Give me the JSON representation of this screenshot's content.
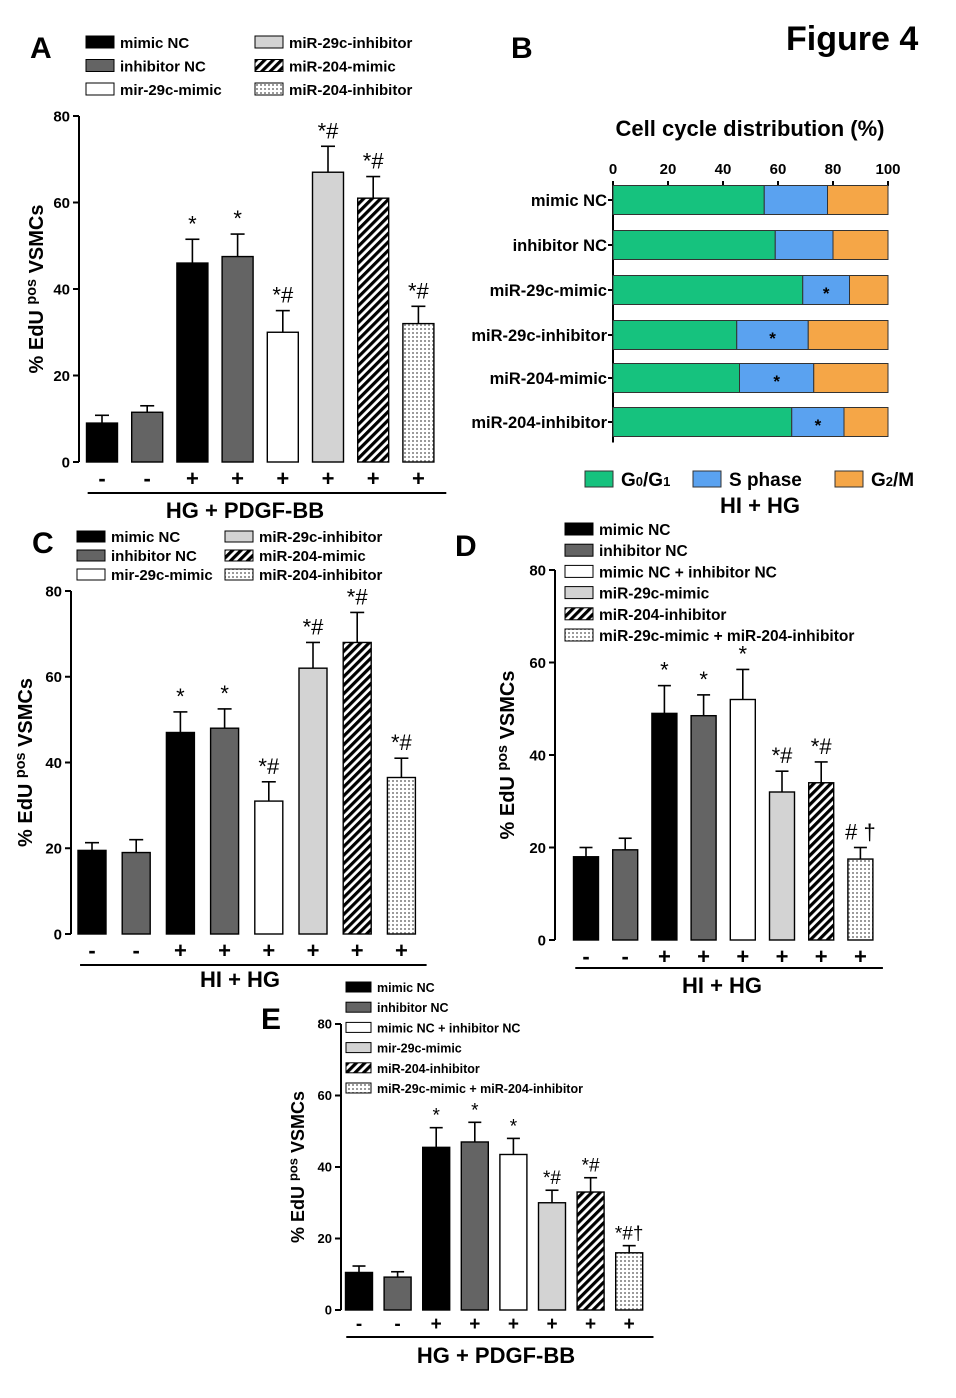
{
  "figure_title": "Figure 4",
  "colors": {
    "mimic_nc": "#000000",
    "inhibitor_nc": "#646464",
    "white": "#ffffff",
    "light_gray": "#d3d3d3",
    "g0g1": "#16c27e",
    "s_phase": "#5aa2f0",
    "g2m": "#f5a647"
  },
  "chart_data": [
    {
      "panel": "A",
      "type": "bar",
      "ylabel": "% EdU pos VSMCs",
      "ylabel_parts": [
        "% EdU",
        "pos",
        "VSMCs"
      ],
      "ylim": [
        0,
        80
      ],
      "yticks": [
        0,
        20,
        40,
        60,
        80
      ],
      "legend": [
        {
          "label": "mimic NC",
          "style": "black"
        },
        {
          "label": "inhibitor NC",
          "style": "darkgray"
        },
        {
          "label": "mir-29c-mimic",
          "style": "white"
        },
        {
          "label": "miR-29c-inhibitor",
          "style": "lightgray"
        },
        {
          "label": "miR-204-mimic",
          "style": "hatch"
        },
        {
          "label": "miR-204-inhibitor",
          "style": "dots"
        }
      ],
      "categories": [
        "-",
        "-",
        "+",
        "+",
        "+",
        "+",
        "+",
        "+"
      ],
      "treatment_label": "HG + PDGF-BB",
      "values": [
        9,
        11.5,
        46,
        47.5,
        30,
        67,
        61,
        32
      ],
      "errors": [
        1.8,
        1.5,
        5.5,
        5.2,
        5,
        6,
        5,
        4
      ],
      "styles": [
        "black",
        "darkgray",
        "black",
        "darkgray",
        "white",
        "lightgray",
        "hatch",
        "dots"
      ],
      "annotations": [
        "",
        "",
        "*",
        "*",
        "*#",
        "*#",
        "*#",
        "*#"
      ]
    },
    {
      "panel": "B",
      "type": "bar",
      "orientation": "horizontal-stacked",
      "title": "Cell cycle distribution (%)",
      "xlim": [
        0,
        100
      ],
      "xticks": [
        0,
        20,
        40,
        60,
        80,
        100
      ],
      "categories": [
        "mimic NC",
        "inhibitor NC",
        "miR-29c-mimic",
        "miR-29c-inhibitor",
        "miR-204-mimic",
        "miR-204-inhibitor"
      ],
      "series": [
        {
          "name": "G0/G1",
          "values": [
            55,
            59,
            69,
            45,
            46,
            65
          ]
        },
        {
          "name": "S phase",
          "values": [
            23,
            21,
            17,
            26,
            27,
            19
          ]
        },
        {
          "name": "G2/M",
          "values": [
            22,
            20,
            14,
            29,
            27,
            16
          ]
        }
      ],
      "s_phase_annotations": [
        "",
        "",
        "*",
        "*",
        "*",
        "*"
      ],
      "legend_labels": [
        "G0/G1",
        "S phase",
        "G2/M"
      ],
      "treatment_label": "HI + HG"
    },
    {
      "panel": "C",
      "type": "bar",
      "ylabel": "% EdU pos VSMCs",
      "ylim": [
        0,
        80
      ],
      "yticks": [
        0,
        20,
        40,
        60,
        80
      ],
      "legend": [
        {
          "label": "mimic NC",
          "style": "black"
        },
        {
          "label": "inhibitor NC",
          "style": "darkgray"
        },
        {
          "label": "mir-29c-mimic",
          "style": "white"
        },
        {
          "label": "miR-29c-inhibitor",
          "style": "lightgray"
        },
        {
          "label": "miR-204-mimic",
          "style": "hatch"
        },
        {
          "label": "miR-204-inhibitor",
          "style": "dots"
        }
      ],
      "categories": [
        "-",
        "-",
        "+",
        "+",
        "+",
        "+",
        "+",
        "+"
      ],
      "treatment_label": "HI + HG",
      "values": [
        19.5,
        19,
        47,
        48,
        31,
        62,
        68,
        36.5
      ],
      "errors": [
        1.8,
        3,
        4.8,
        4.5,
        4.5,
        6,
        7,
        4.5
      ],
      "styles": [
        "black",
        "darkgray",
        "black",
        "darkgray",
        "white",
        "lightgray",
        "hatch",
        "dots"
      ],
      "annotations": [
        "",
        "",
        "*",
        "*",
        "*#",
        "*#",
        "*#",
        "*#"
      ]
    },
    {
      "panel": "D",
      "type": "bar",
      "ylabel": "% EdU pos VSMCs",
      "ylim": [
        0,
        80
      ],
      "yticks": [
        0,
        20,
        40,
        60,
        80
      ],
      "legend": [
        {
          "label": "mimic NC",
          "style": "black"
        },
        {
          "label": "inhibitor NC",
          "style": "darkgray"
        },
        {
          "label": "mimic NC + inhibitor NC",
          "style": "white"
        },
        {
          "label": "miR-29c-mimic",
          "style": "lightgray"
        },
        {
          "label": "miR-204-inhibitor",
          "style": "hatch"
        },
        {
          "label": "miR-29c-mimic + miR-204-inhibitor",
          "style": "dots"
        }
      ],
      "categories": [
        "-",
        "-",
        "+",
        "+",
        "+",
        "+",
        "+",
        "+"
      ],
      "treatment_label": "HI + HG",
      "values": [
        18,
        19.5,
        49,
        48.5,
        52,
        32,
        34,
        17.5
      ],
      "errors": [
        2,
        2.5,
        6,
        4.5,
        6.5,
        4.5,
        4.5,
        2.5
      ],
      "styles": [
        "black",
        "darkgray",
        "black",
        "darkgray",
        "white",
        "lightgray",
        "hatch",
        "dots"
      ],
      "annotations": [
        "",
        "",
        "*",
        "*",
        "*",
        "*#",
        "*#",
        "# †"
      ]
    },
    {
      "panel": "E",
      "type": "bar",
      "ylabel": "% EdU pos VSMCs",
      "ylim": [
        0,
        80
      ],
      "yticks": [
        0,
        20,
        40,
        60,
        80
      ],
      "legend": [
        {
          "label": "mimic NC",
          "style": "black"
        },
        {
          "label": "inhibitor NC",
          "style": "darkgray"
        },
        {
          "label": "mimic NC + inhibitor NC",
          "style": "white"
        },
        {
          "label": "mir-29c-mimic",
          "style": "lightgray"
        },
        {
          "label": "miR-204-inhibitor",
          "style": "hatch"
        },
        {
          "label": "miR-29c-mimic + miR-204-inhibitor",
          "style": "dots"
        }
      ],
      "categories": [
        "-",
        "-",
        "+",
        "+",
        "+",
        "+",
        "+",
        "+"
      ],
      "treatment_label": "HG + PDGF-BB",
      "values": [
        10.5,
        9.2,
        45.5,
        47,
        43.5,
        30,
        33,
        16
      ],
      "errors": [
        1.8,
        1.5,
        5.5,
        5.5,
        4.5,
        3.5,
        4,
        2
      ],
      "styles": [
        "black",
        "darkgray",
        "black",
        "darkgray",
        "white",
        "lightgray",
        "hatch",
        "dots"
      ],
      "annotations": [
        "",
        "",
        "*",
        "*",
        "*",
        "*#",
        "*#",
        "*#†"
      ]
    }
  ]
}
